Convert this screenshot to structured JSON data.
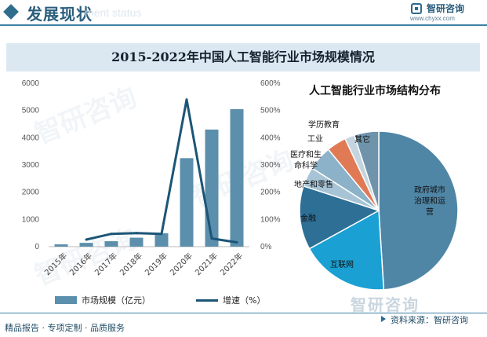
{
  "header": {
    "title": "发展现状",
    "ghost_text": "ment status",
    "logo_name": "智研咨询",
    "logo_url": "www.chyxx.com"
  },
  "watermark": {
    "text": "智研咨询"
  },
  "chart_title": "2015-2022年中国人工智能行业市场规模情况",
  "chart_data": [
    {
      "type": "bar",
      "categories": [
        "2015年",
        "2016年",
        "2017年",
        "2018年",
        "2019年",
        "2020年",
        "2021年",
        "2022年"
      ],
      "series": [
        {
          "name": "市场规模（亿元）",
          "type": "bar",
          "axis": "left",
          "color": "#5b8fac",
          "values": [
            85,
            140,
            200,
            330,
            490,
            3250,
            4300,
            5050
          ]
        },
        {
          "name": "增速（%）",
          "type": "line",
          "axis": "right",
          "color": "#1c5577",
          "values": [
            null,
            26,
            47,
            50,
            47,
            540,
            30,
            16
          ]
        }
      ],
      "y_left": {
        "ticks": [
          0,
          1000,
          2000,
          3000,
          4000,
          5000,
          6000
        ],
        "ylim": [
          0,
          6000
        ]
      },
      "y_right": {
        "ticks": [
          "0%",
          "100%",
          "200%",
          "300%",
          "400%",
          "500%",
          "600%"
        ],
        "ylim": [
          0,
          600
        ]
      },
      "legend_position": "bottom"
    },
    {
      "type": "pie",
      "title": "人工智能行业市场结构分布",
      "slices": [
        {
          "label": "政府城市治理和运营",
          "lines": [
            "政府城市",
            "治理和运",
            "营"
          ],
          "value": 49,
          "color": "#4f86a6"
        },
        {
          "label": "互联网",
          "lines": [
            "互联网"
          ],
          "value": 18,
          "color": "#1aa0d3"
        },
        {
          "label": "金融",
          "lines": [
            "金融"
          ],
          "value": 13,
          "color": "#2d6f95"
        },
        {
          "label": "地产和零售",
          "lines": [
            "地产和零售"
          ],
          "value": 4,
          "color": "#a7c4d6"
        },
        {
          "label": "医疗和生命科学",
          "lines": [
            "医疗和生",
            "命科学"
          ],
          "value": 5,
          "color": "#8bb2c8"
        },
        {
          "label": "学历教育",
          "lines": [
            "学历教育"
          ],
          "value": 4,
          "color": "#e07a55"
        },
        {
          "label": "工业",
          "lines": [
            "工业"
          ],
          "value": 2,
          "color": "#c5d5df"
        },
        {
          "label": "其它",
          "lines": [
            "其它"
          ],
          "value": 5,
          "color": "#6f93ab"
        }
      ]
    }
  ],
  "legend": {
    "bar_label": "市场规模（亿元）",
    "line_label": "增速（%）"
  },
  "footer": {
    "left": "精品报告 · 专项定制 · 品质服务",
    "right": "资料来源：智研咨询"
  },
  "colors": {
    "accent": "#2a5d7c",
    "banner_bg": "#dbe8f1"
  }
}
